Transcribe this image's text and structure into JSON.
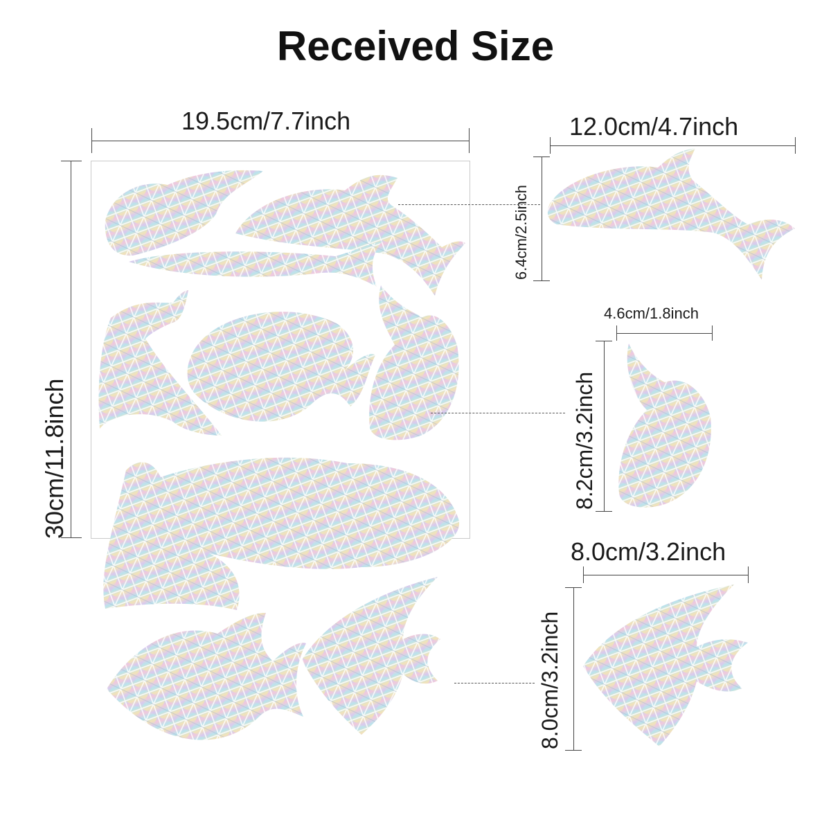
{
  "title": "Received Size",
  "sheet": {
    "width_label": "19.5cm/7.7inch",
    "height_label": "30cm/11.8inch"
  },
  "details": [
    {
      "name": "whale",
      "width_label": "12.0cm/4.7inch",
      "height_label": "6.4cm/2.5inch"
    },
    {
      "name": "small-fish",
      "width_label": "4.6cm/1.8inch",
      "height_label": "8.2cm/3.2inch"
    },
    {
      "name": "angelfish",
      "width_label": "8.0cm/3.2inch",
      "height_label": "8.0cm/3.2inch"
    }
  ],
  "colors": {
    "holo_stops": [
      "#c9d4ee",
      "#f2c8dc",
      "#b9e3ee",
      "#f3e3b8",
      "#d9c9f0",
      "#bfe6d6"
    ],
    "line": "#444444",
    "sheet_border": "#c9c9c9"
  }
}
